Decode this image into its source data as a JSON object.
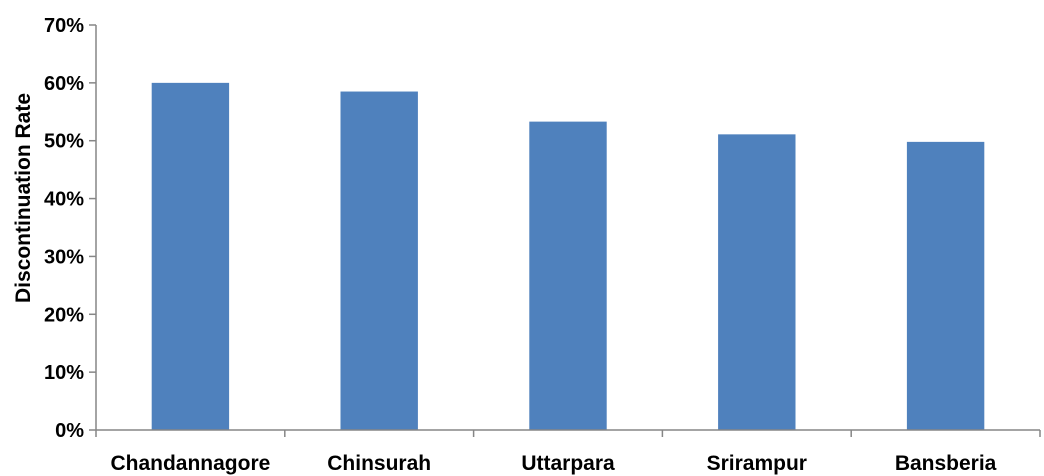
{
  "chart_data": {
    "type": "bar",
    "title": "",
    "xlabel": "",
    "ylabel": "Discontinuation Rate",
    "categories": [
      "Chandannagore",
      "Chinsurah",
      "Uttarpara",
      "Srirampur",
      "Bansberia"
    ],
    "values": [
      60.0,
      58.5,
      53.3,
      51.1,
      49.8
    ],
    "ylim": [
      0,
      70
    ],
    "yticks": [
      0,
      10,
      20,
      30,
      40,
      50,
      60,
      70
    ],
    "ytick_format": "percent",
    "grid": false,
    "legend": "none",
    "bar_color": "#4F81BD"
  }
}
